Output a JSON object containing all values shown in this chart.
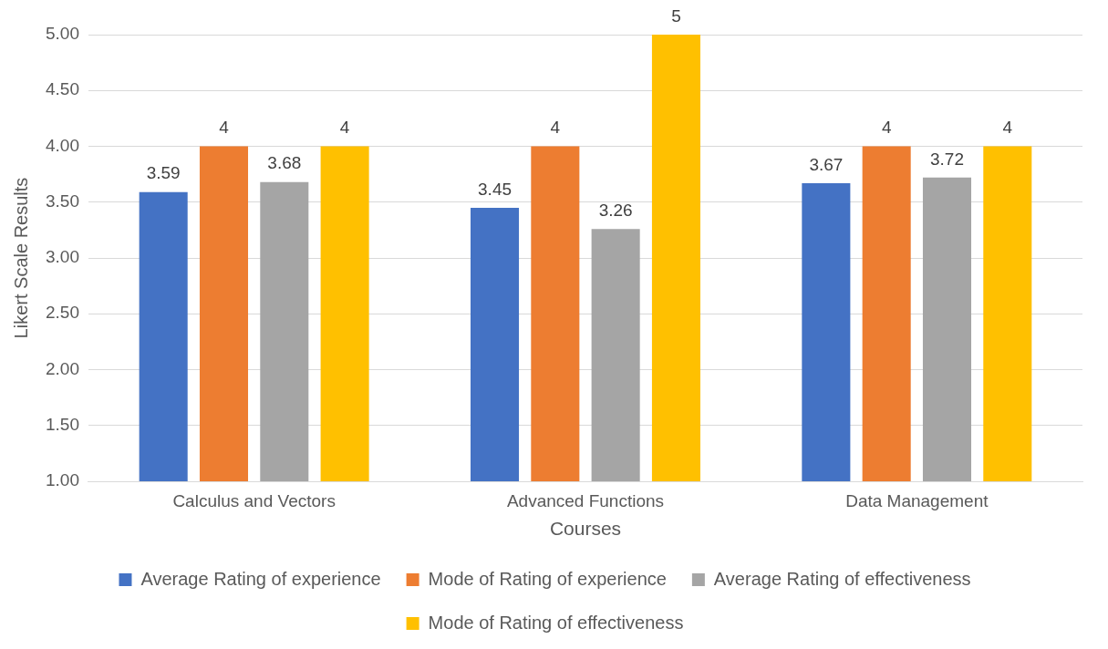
{
  "chart_data": {
    "type": "bar",
    "categories": [
      "Calculus and Vectors",
      "Advanced Functions",
      "Data Management"
    ],
    "series": [
      {
        "name": "Average Rating of experience",
        "color": "#4472c4",
        "values": [
          3.59,
          3.45,
          3.67
        ]
      },
      {
        "name": "Mode of Rating of experience",
        "color": "#ed7d31",
        "values": [
          4,
          4,
          4
        ]
      },
      {
        "name": "Average Rating of effectiveness",
        "color": "#a5a5a5",
        "values": [
          3.68,
          3.26,
          3.72
        ]
      },
      {
        "name": "Mode of Rating of effectiveness",
        "color": "#ffc000",
        "values": [
          4,
          5,
          4
        ]
      }
    ],
    "xlabel": "Courses",
    "ylabel": "Likert Scale Results",
    "ylim": [
      1,
      5
    ],
    "yticks": [
      {
        "value": 1,
        "label": "1.00"
      },
      {
        "value": 1.5,
        "label": "1.50"
      },
      {
        "value": 2,
        "label": "2.00"
      },
      {
        "value": 2.5,
        "label": "2.50"
      },
      {
        "value": 3,
        "label": "3.00"
      },
      {
        "value": 3.5,
        "label": "3.50"
      },
      {
        "value": 4,
        "label": "4.00"
      },
      {
        "value": 4.5,
        "label": "4.50"
      },
      {
        "value": 5,
        "label": "5.00"
      }
    ],
    "grid": "y",
    "legend": "bottom",
    "data_labels": true
  }
}
